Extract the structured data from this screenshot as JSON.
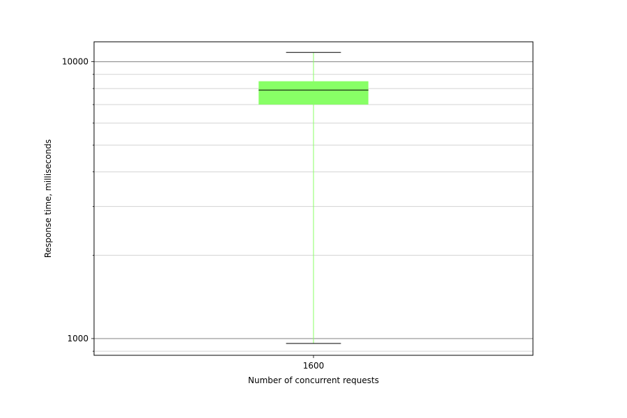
{
  "chart_data": {
    "type": "box",
    "title": "",
    "xlabel": "Number of concurrent requests",
    "ylabel": "Response time, milliseconds",
    "yscale": "log",
    "ylim": [
      870,
      11800
    ],
    "yticks": [
      1000,
      10000
    ],
    "ytick_labels": [
      "1000",
      "10000"
    ],
    "grid": "horizontal",
    "categories": [
      "1600"
    ],
    "boxes": [
      {
        "category": "1600",
        "whisker_low": 960,
        "q1": 7000,
        "median": 7900,
        "q3": 8500,
        "whisker_high": 10800,
        "color": "#88ff66"
      }
    ]
  }
}
